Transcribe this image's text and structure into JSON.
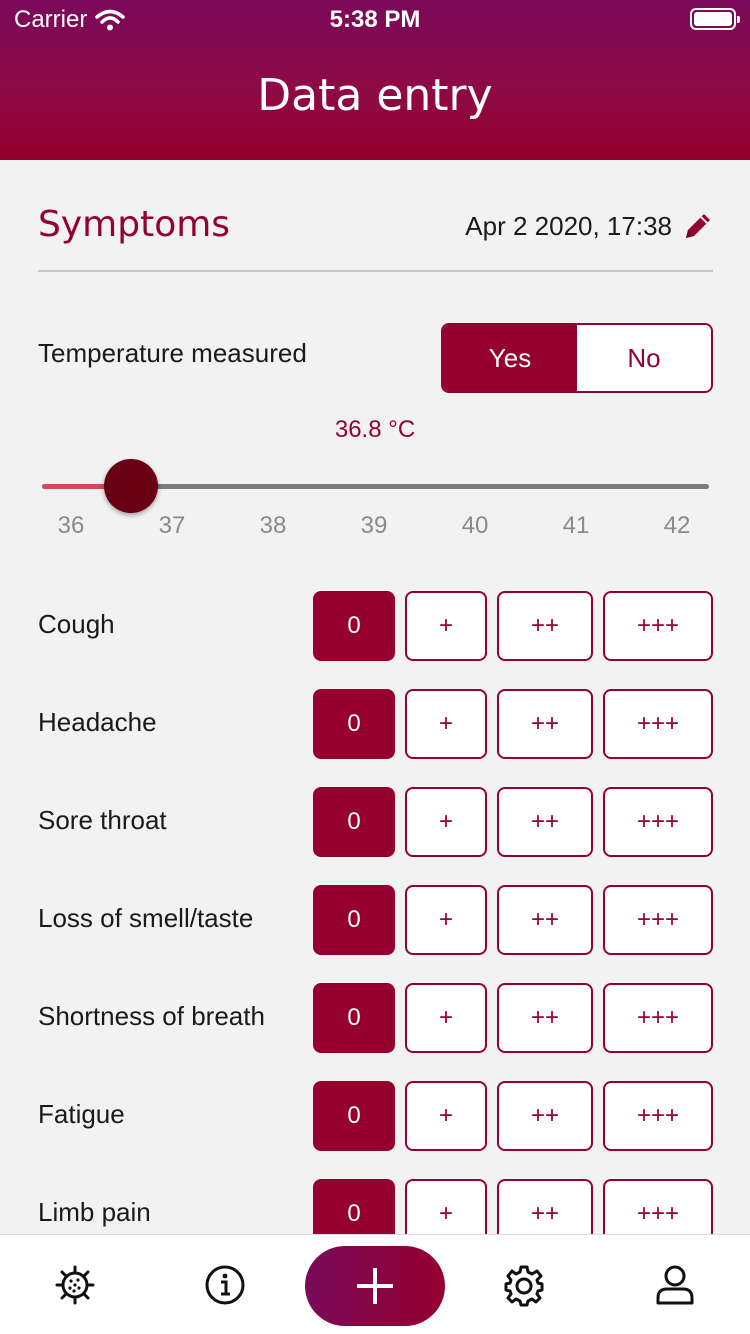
{
  "status_bar": {
    "carrier": "Carrier",
    "time": "5:38 PM"
  },
  "header": {
    "title": "Data entry"
  },
  "section": {
    "title": "Symptoms",
    "datetime": "Apr 2 2020, 17:38"
  },
  "temperature": {
    "label": "Temperature measured",
    "yes_label": "Yes",
    "no_label": "No",
    "selected": "Yes",
    "value_text": "36.8 °C",
    "value": 36.8,
    "min": 36,
    "max": 42,
    "ticks": [
      "36",
      "37",
      "38",
      "39",
      "40",
      "41",
      "42"
    ]
  },
  "severity_options": [
    "0",
    "+",
    "++",
    "+++"
  ],
  "symptoms": [
    {
      "label": "Cough",
      "selected": "0"
    },
    {
      "label": "Headache",
      "selected": "0"
    },
    {
      "label": "Sore throat",
      "selected": "0"
    },
    {
      "label": "Loss of smell/taste",
      "selected": "0"
    },
    {
      "label": "Shortness of breath",
      "selected": "0"
    },
    {
      "label": "Fatigue",
      "selected": "0"
    },
    {
      "label": "Limb pain",
      "selected": "0"
    }
  ],
  "tabbar": {
    "items": [
      "virus-icon",
      "info-icon",
      "add-icon",
      "gear-icon",
      "user-icon"
    ]
  },
  "colors": {
    "accent": "#95002e",
    "header_top": "#7a0a5a",
    "background": "#f2f2f2"
  }
}
